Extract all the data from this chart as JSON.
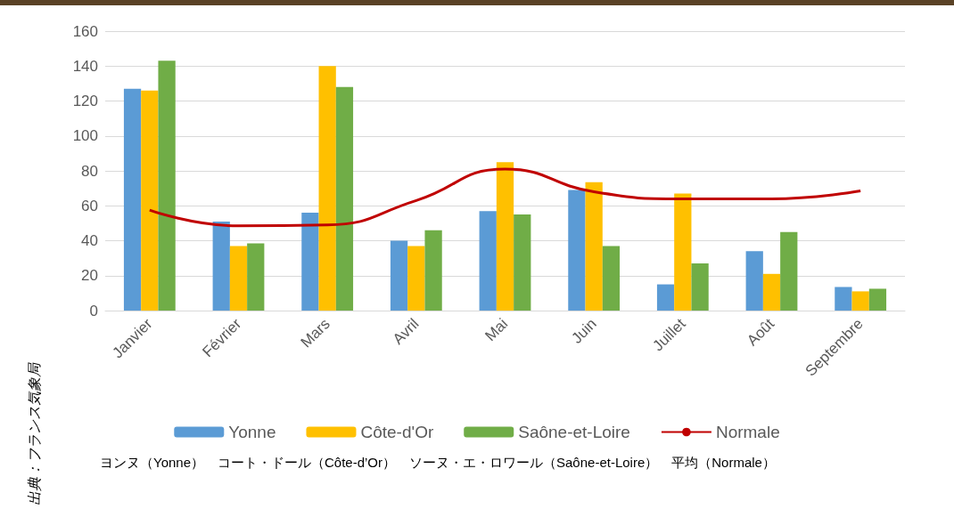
{
  "chart_data": {
    "type": "bar",
    "categories": [
      "Janvier",
      "Février",
      "Mars",
      "Avril",
      "Mai",
      "Juin",
      "Juillet",
      "Août",
      "Septembre"
    ],
    "series": [
      {
        "name": "Yonne",
        "color": "#5b9bd5",
        "values": [
          127,
          51,
          56,
          40,
          57,
          69,
          15,
          34,
          13.5
        ]
      },
      {
        "name": "Côte-d'Or",
        "color": "#ffc000",
        "values": [
          126,
          37,
          140,
          37,
          85,
          73.5,
          67,
          21,
          11
        ]
      },
      {
        "name": "Saône-et-Loire",
        "color": "#70ad47",
        "values": [
          143,
          38.5,
          128,
          46,
          55,
          37,
          27,
          45,
          12.5
        ]
      },
      {
        "name": "Normale",
        "type": "line",
        "color": "#c00000",
        "values": [
          57.5,
          48.5,
          49,
          63,
          81,
          68,
          64,
          64,
          68.5
        ]
      }
    ],
    "ylim": [
      0,
      160
    ],
    "yticks": [
      0,
      20,
      40,
      60,
      80,
      100,
      120,
      140,
      160
    ],
    "grid": "y",
    "legend": "bottom",
    "marker": "none",
    "annotations": [
      "ヨンヌ（Yonne）　コート・ドール（Côte-d’Or）　ソーヌ・エ・ロワール（Saône-et-Loire）　平均（Normale）",
      "出典：フランス気象局"
    ]
  }
}
